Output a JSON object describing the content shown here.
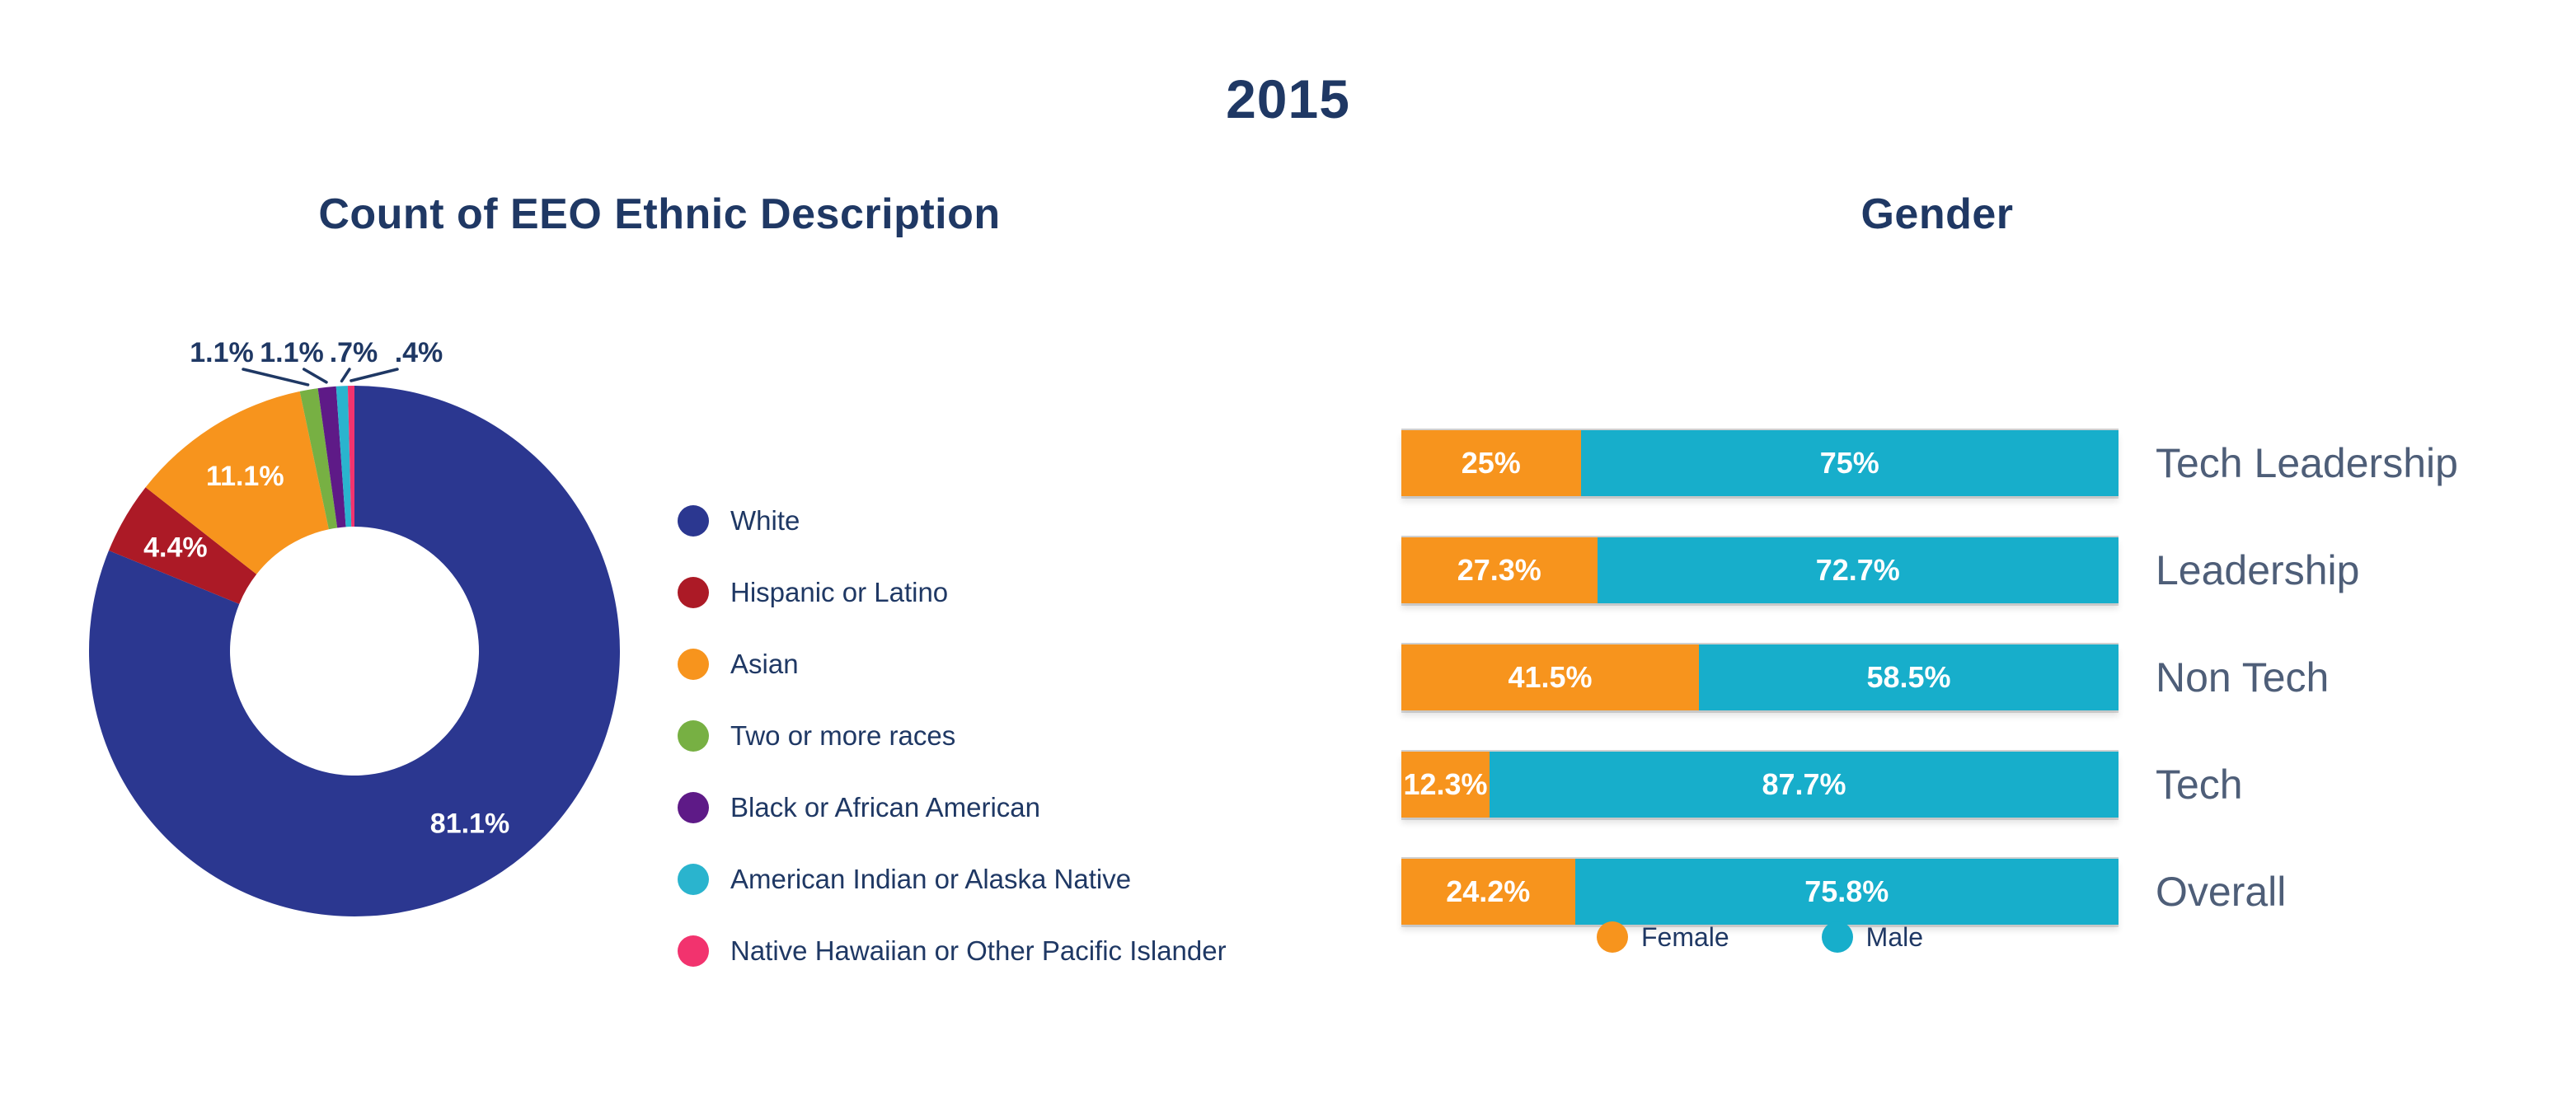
{
  "page": {
    "title": "2015"
  },
  "palette": {
    "title_text": "#1F3864",
    "category_label_text": "#4E5E78",
    "background": "#FFFFFF",
    "female_accent": "#F7941D",
    "male_accent": "#17AECB"
  },
  "chart_data": [
    {
      "type": "pie",
      "variant": "donut",
      "title": "Count of EEO Ethnic Description",
      "legend_position": "right",
      "start_angle_deg": 0,
      "direction": "clockwise",
      "slices": [
        {
          "label": "White",
          "value": 81.1,
          "display": "81.1%",
          "color": "#2B3790",
          "label_placement": "inside"
        },
        {
          "label": "Hispanic or Latino",
          "value": 4.4,
          "display": "4.4%",
          "color": "#AC1A26",
          "label_placement": "inside"
        },
        {
          "label": "Asian",
          "value": 11.1,
          "display": "11.1%",
          "color": "#F7941D",
          "label_placement": "inside"
        },
        {
          "label": "Two or more races",
          "value": 1.1,
          "display": "1.1%",
          "color": "#77B043",
          "label_placement": "outside"
        },
        {
          "label": "Black or African American",
          "value": 1.1,
          "display": "1.1%",
          "color": "#5E1A87",
          "label_placement": "outside"
        },
        {
          "label": "American Indian or Alaska Native",
          "value": 0.7,
          "display": ".7%",
          "color": "#2AB4CE",
          "label_placement": "outside"
        },
        {
          "label": "Native Hawaiian or Other Pacific Islander",
          "value": 0.4,
          "display": ".4%",
          "color": "#F2336E",
          "label_placement": "outside"
        }
      ]
    },
    {
      "type": "bar",
      "variant": "horizontal-stacked-100",
      "title": "Gender",
      "legend_position": "bottom",
      "xlim": [
        0,
        100
      ],
      "categories": [
        "Tech Leadership",
        "Leadership",
        "Non Tech",
        "Tech",
        "Overall"
      ],
      "series": [
        {
          "name": "Female",
          "color": "#F7941D",
          "values": [
            25,
            27.3,
            41.5,
            12.3,
            24.2
          ],
          "displays": [
            "25%",
            "27.3%",
            "41.5%",
            "12.3%",
            "24.2%"
          ]
        },
        {
          "name": "Male",
          "color": "#17AECB",
          "values": [
            75,
            72.7,
            58.5,
            87.7,
            75.8
          ],
          "displays": [
            "75%",
            "72.7%",
            "58.5%",
            "87.7%",
            "75.8%"
          ]
        }
      ]
    }
  ]
}
